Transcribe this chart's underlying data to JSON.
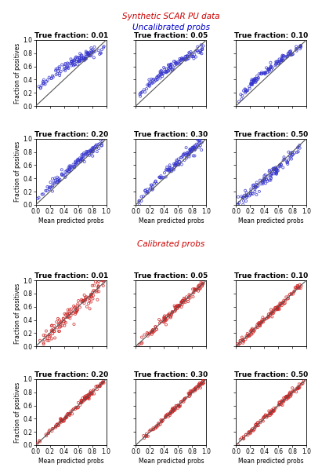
{
  "title_main": "Synthetic SCAR PU data",
  "title_uncal": "Uncalibrated probs",
  "title_cal": "Calibrated probs",
  "title_main_color": "#CC0000",
  "title_uncal_color": "#0000CC",
  "title_cal_color": "#CC0000",
  "fractions": [
    0.01,
    0.05,
    0.1,
    0.2,
    0.3,
    0.5
  ],
  "uncal_color": "#3333CC",
  "cal_color": "#CC2222",
  "diagonal_color": "#555555",
  "xlabel": "Mean predicted probs",
  "ylabel": "Fraction of positives",
  "xticks": [
    0.0,
    0.2,
    0.4,
    0.6,
    0.8,
    1.0
  ],
  "yticks": [
    0.0,
    0.2,
    0.4,
    0.6,
    0.8,
    1.0
  ],
  "xlim": [
    0.0,
    1.0
  ],
  "ylim": [
    0.0,
    1.0
  ]
}
